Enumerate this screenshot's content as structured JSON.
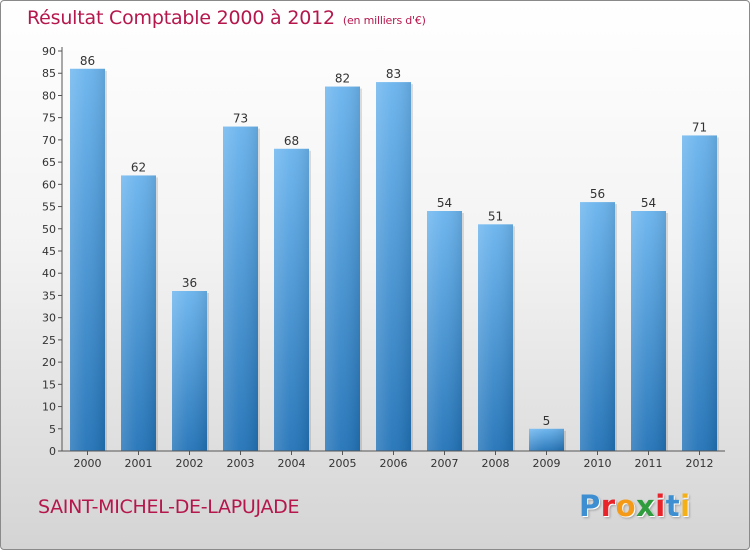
{
  "title": "Résultat Comptable 2000 à 2012",
  "subtitle": "(en milliers d'€)",
  "commune": "SAINT-MICHEL-DE-LAPUJADE",
  "brand": {
    "letters": [
      "P",
      "r",
      "o",
      "x",
      "i",
      "t",
      "i"
    ],
    "colors": [
      "#3d8fd1",
      "#e8232a",
      "#f59a16",
      "#2f9c3e",
      "#e8232a",
      "#3d8fd1",
      "#f5b016"
    ]
  },
  "colors": {
    "title": "#b5174d",
    "bar": "#4a9de0",
    "bar_dark": "#2273b8",
    "bar_light": "#6ab4ee"
  },
  "chart_data": {
    "type": "bar",
    "title": "Résultat Comptable 2000 à 2012",
    "subtitle": "(en milliers d'€)",
    "categories": [
      "2000",
      "2001",
      "2002",
      "2003",
      "2004",
      "2005",
      "2006",
      "2007",
      "2008",
      "2009",
      "2010",
      "2011",
      "2012"
    ],
    "values": [
      86,
      62,
      36,
      73,
      68,
      82,
      83,
      54,
      51,
      5,
      56,
      54,
      71
    ],
    "y_ticks": [
      0,
      5,
      10,
      15,
      20,
      25,
      30,
      35,
      40,
      45,
      50,
      55,
      60,
      65,
      70,
      75,
      80,
      85,
      90
    ],
    "ylim": [
      0,
      90
    ],
    "grid": false,
    "data_labels": true
  }
}
